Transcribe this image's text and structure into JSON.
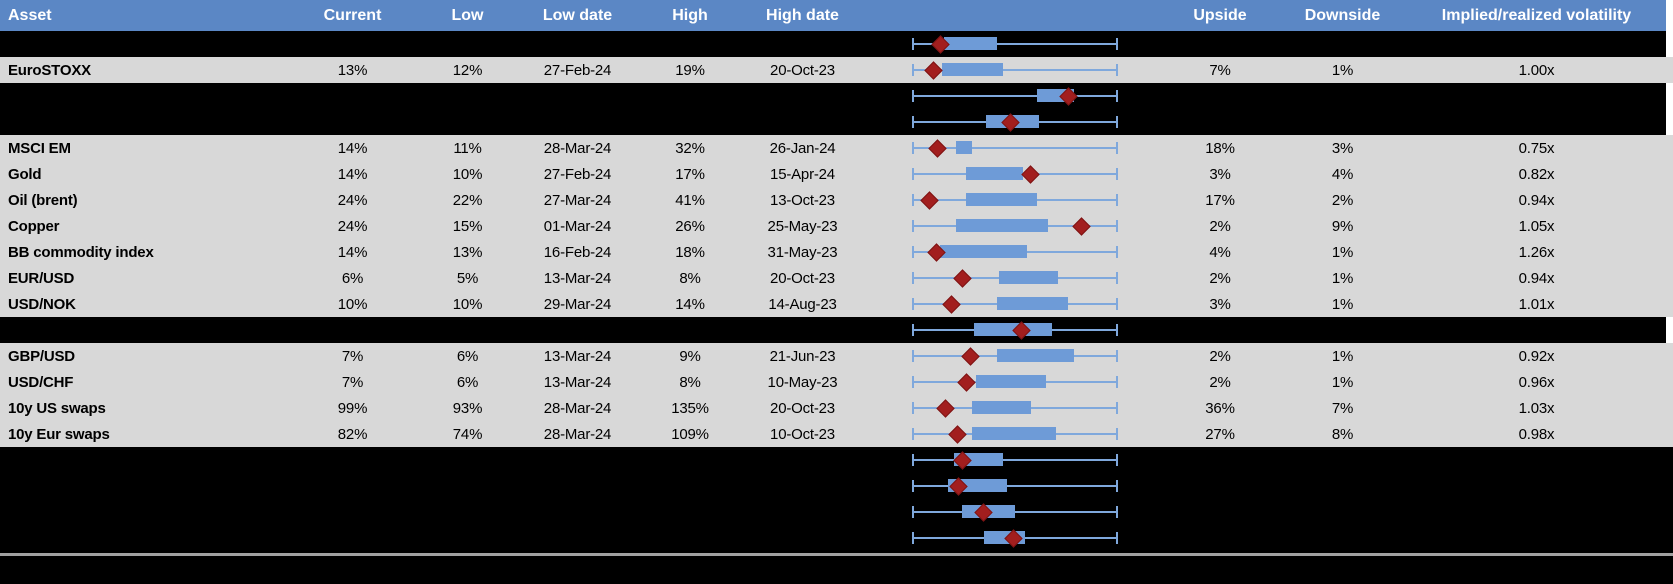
{
  "colors": {
    "header_bg": "#5B87C5",
    "header_text": "#ffffff",
    "row_gray_bg": "#D8D8D8",
    "row_black_bg": "#000000",
    "whisker_blue": "#7FA8DC",
    "box_blue": "#6E9BD7",
    "diamond_red": "#A21E1E",
    "divider_gray": "#A0A0A0"
  },
  "chart_data": {
    "type": "table",
    "title": "Implied volatility table with 52-week range box-whisker plots per asset",
    "columns": [
      "Asset",
      "Current",
      "Low",
      "Low date",
      "High",
      "High date",
      "",
      "Upside",
      "Downside",
      "Implied/realized volatility"
    ],
    "plot_legend": "Whisker spans the full low-high range (uniform cell width); blue box = middle range; dark red diamond = current level (positions given as 0-1 fractions of the whisker span)",
    "rows": [
      {
        "kind": "plot-only",
        "bg": "black",
        "edge": true,
        "plot": {
          "box_start": 0.15,
          "box_end": 0.41,
          "marker": 0.135
        }
      },
      {
        "kind": "data",
        "bg": "gray",
        "asset": "EuroSTOXX",
        "current": "13%",
        "low": "12%",
        "low_date": "27-Feb-24",
        "high": "19%",
        "high_date": "20-Oct-23",
        "upside": "7%",
        "downside": "1%",
        "implied_realized": "1.00x",
        "plot": {
          "box_start": 0.14,
          "box_end": 0.44,
          "marker": 0.1
        }
      },
      {
        "kind": "plot-only",
        "bg": "black",
        "edge": true,
        "plot": {
          "box_start": 0.61,
          "box_end": 0.79,
          "marker": 0.76
        }
      },
      {
        "kind": "plot-only",
        "bg": "black",
        "edge": true,
        "plot": {
          "box_start": 0.36,
          "box_end": 0.62,
          "marker": 0.48
        }
      },
      {
        "kind": "data",
        "bg": "gray",
        "asset": "MSCI EM",
        "current": "14%",
        "low": "11%",
        "low_date": "28-Mar-24",
        "high": "32%",
        "high_date": "26-Jan-24",
        "upside": "18%",
        "downside": "3%",
        "implied_realized": "0.75x",
        "plot": {
          "box_start": 0.21,
          "box_end": 0.29,
          "marker": 0.12
        }
      },
      {
        "kind": "data",
        "bg": "gray",
        "asset": "Gold",
        "current": "14%",
        "low": "10%",
        "low_date": "27-Feb-24",
        "high": "17%",
        "high_date": "15-Apr-24",
        "upside": "3%",
        "downside": "4%",
        "implied_realized": "0.82x",
        "plot": {
          "box_start": 0.26,
          "box_end": 0.54,
          "marker": 0.577
        }
      },
      {
        "kind": "data",
        "bg": "gray",
        "asset": "Oil (brent)",
        "current": "24%",
        "low": "22%",
        "low_date": "27-Mar-24",
        "high": "41%",
        "high_date": "13-Oct-23",
        "upside": "17%",
        "downside": "2%",
        "implied_realized": "0.94x",
        "plot": {
          "box_start": 0.26,
          "box_end": 0.61,
          "marker": 0.083
        }
      },
      {
        "kind": "data",
        "bg": "gray",
        "asset": "Copper",
        "current": "24%",
        "low": "15%",
        "low_date": "01-Mar-24",
        "high": "26%",
        "high_date": "25-May-23",
        "upside": "2%",
        "downside": "9%",
        "implied_realized": "1.05x",
        "plot": {
          "box_start": 0.21,
          "box_end": 0.66,
          "marker": 0.827
        }
      },
      {
        "kind": "data",
        "bg": "gray",
        "asset": "BB commodity index",
        "current": "14%",
        "low": "13%",
        "low_date": "16-Feb-24",
        "high": "18%",
        "high_date": "31-May-23",
        "upside": "4%",
        "downside": "1%",
        "implied_realized": "1.26x",
        "plot": {
          "box_start": 0.13,
          "box_end": 0.56,
          "marker": 0.116
        }
      },
      {
        "kind": "data",
        "bg": "gray",
        "asset": "EUR/USD",
        "current": "6%",
        "low": "5%",
        "low_date": "13-Mar-24",
        "high": "8%",
        "high_date": "20-Oct-23",
        "upside": "2%",
        "downside": "1%",
        "implied_realized": "0.94x",
        "plot": {
          "box_start": 0.42,
          "box_end": 0.71,
          "marker": 0.244
        }
      },
      {
        "kind": "data",
        "bg": "gray",
        "asset": "USD/NOK",
        "current": "10%",
        "low": "10%",
        "low_date": "29-Mar-24",
        "high": "14%",
        "high_date": "14-Aug-23",
        "upside": "3%",
        "downside": "1%",
        "implied_realized": "1.01x",
        "plot": {
          "box_start": 0.41,
          "box_end": 0.76,
          "marker": 0.19
        }
      },
      {
        "kind": "plot-only",
        "bg": "black",
        "edge": true,
        "plot": {
          "box_start": 0.3,
          "box_end": 0.68,
          "marker": 0.533
        }
      },
      {
        "kind": "data",
        "bg": "gray",
        "asset": "GBP/USD",
        "current": "7%",
        "low": "6%",
        "low_date": "13-Mar-24",
        "high": "9%",
        "high_date": "21-Jun-23",
        "upside": "2%",
        "downside": "1%",
        "implied_realized": "0.92x",
        "plot": {
          "box_start": 0.41,
          "box_end": 0.79,
          "marker": 0.284
        }
      },
      {
        "kind": "data",
        "bg": "gray",
        "asset": "USD/CHF",
        "current": "7%",
        "low": "6%",
        "low_date": "13-Mar-24",
        "high": "8%",
        "high_date": "10-May-23",
        "upside": "2%",
        "downside": "1%",
        "implied_realized": "0.96x",
        "plot": {
          "box_start": 0.31,
          "box_end": 0.65,
          "marker": 0.263
        }
      },
      {
        "kind": "data",
        "bg": "gray",
        "asset": "10y US swaps",
        "current": "99%",
        "low": "93%",
        "low_date": "28-Mar-24",
        "high": "135%",
        "high_date": "20-Oct-23",
        "upside": "36%",
        "downside": "7%",
        "implied_realized": "1.03x",
        "plot": {
          "box_start": 0.29,
          "box_end": 0.58,
          "marker": 0.157
        }
      },
      {
        "kind": "data",
        "bg": "gray",
        "asset": "10y Eur swaps",
        "current": "82%",
        "low": "74%",
        "low_date": "28-Mar-24",
        "high": "109%",
        "high_date": "10-Oct-23",
        "upside": "27%",
        "downside": "8%",
        "implied_realized": "0.98x",
        "plot": {
          "box_start": 0.29,
          "box_end": 0.7,
          "marker": 0.219
        }
      },
      {
        "kind": "plot-only",
        "bg": "black",
        "edge": false,
        "plot": {
          "box_start": 0.2,
          "box_end": 0.44,
          "marker": 0.244
        }
      },
      {
        "kind": "plot-only",
        "bg": "black",
        "edge": false,
        "plot": {
          "box_start": 0.17,
          "box_end": 0.46,
          "marker": 0.222
        }
      },
      {
        "kind": "plot-only",
        "bg": "black",
        "edge": false,
        "plot": {
          "box_start": 0.24,
          "box_end": 0.5,
          "marker": 0.345
        }
      },
      {
        "kind": "plot-only",
        "bg": "black",
        "edge": false,
        "plot": {
          "box_start": 0.35,
          "box_end": 0.55,
          "marker": 0.492
        }
      }
    ]
  }
}
